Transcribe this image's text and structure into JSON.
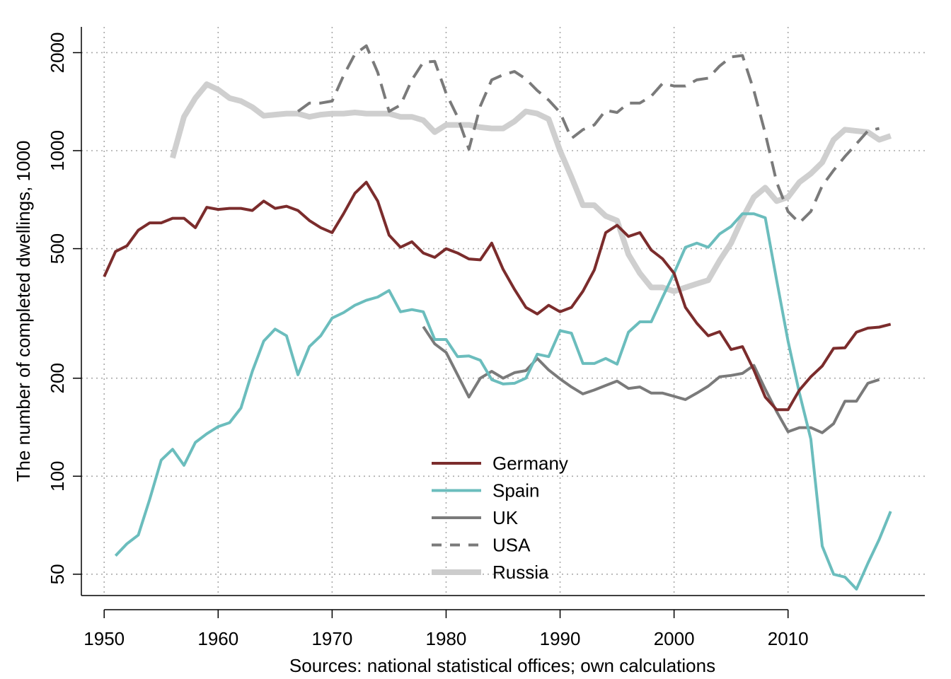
{
  "chart_data": {
    "type": "line",
    "title": "",
    "xlabel": "Sources: national statistical offices; own calculations",
    "ylabel": "The number of completed dwellings, 1000",
    "y_scale": "log",
    "xlim": [
      1948,
      2022
    ],
    "ylim": [
      43,
      2400
    ],
    "x_ticks": [
      1950,
      1960,
      1970,
      1980,
      1990,
      2000,
      2010
    ],
    "y_ticks": [
      50,
      100,
      200,
      500,
      1000,
      2000
    ],
    "grid": true,
    "legend_position": "bottom-center",
    "series": [
      {
        "name": "Germany",
        "color": "#7b2c2c",
        "dash": "solid",
        "x": [
          1950,
          1951,
          1952,
          1953,
          1954,
          1955,
          1956,
          1957,
          1958,
          1959,
          1960,
          1961,
          1962,
          1963,
          1964,
          1965,
          1966,
          1967,
          1968,
          1969,
          1970,
          1971,
          1972,
          1973,
          1974,
          1975,
          1976,
          1977,
          1978,
          1979,
          1980,
          1981,
          1982,
          1983,
          1984,
          1985,
          1986,
          1987,
          1988,
          1989,
          1990,
          1991,
          1992,
          1993,
          1994,
          1995,
          1996,
          1997,
          1998,
          1999,
          2000,
          2001,
          2002,
          2003,
          2004,
          2005,
          2006,
          2007,
          2008,
          2009,
          2010,
          2011,
          2012,
          2013,
          2014,
          2015,
          2016,
          2017,
          2018,
          2019
        ],
        "y": [
          410,
          490,
          510,
          570,
          600,
          600,
          620,
          620,
          580,
          670,
          660,
          665,
          665,
          655,
          700,
          665,
          675,
          655,
          610,
          580,
          560,
          640,
          740,
          800,
          700,
          550,
          505,
          525,
          485,
          470,
          500,
          485,
          465,
          462,
          520,
          432,
          375,
          330,
          315,
          335,
          320,
          330,
          370,
          430,
          560,
          590,
          545,
          560,
          495,
          465,
          420,
          330,
          295,
          270,
          278,
          245,
          250,
          212,
          175,
          160,
          160,
          184,
          202,
          218,
          247,
          248,
          277,
          285,
          287,
          293
        ]
      },
      {
        "name": "Spain",
        "color": "#6bbdbd",
        "dash": "solid",
        "x": [
          1951,
          1952,
          1953,
          1954,
          1955,
          1956,
          1957,
          1958,
          1959,
          1960,
          1961,
          1962,
          1963,
          1964,
          1965,
          1966,
          1967,
          1968,
          1969,
          1970,
          1971,
          1972,
          1973,
          1974,
          1975,
          1976,
          1977,
          1978,
          1979,
          1980,
          1981,
          1982,
          1983,
          1984,
          1985,
          1986,
          1987,
          1988,
          1989,
          1990,
          1991,
          1992,
          1993,
          1994,
          1995,
          1996,
          1997,
          1998,
          1999,
          2000,
          2001,
          2002,
          2003,
          2004,
          2005,
          2006,
          2007,
          2008,
          2009,
          2010,
          2011,
          2012,
          2013,
          2014,
          2015,
          2016,
          2017,
          2018,
          2019
        ],
        "y": [
          57,
          62,
          66,
          85,
          112,
          121,
          108,
          127,
          135,
          142,
          146,
          162,
          210,
          260,
          283,
          270,
          205,
          250,
          270,
          306,
          318,
          335,
          347,
          355,
          372,
          320,
          325,
          320,
          263,
          263,
          233,
          234,
          227,
          198,
          192,
          193,
          200,
          237,
          233,
          280,
          275,
          222,
          222,
          230,
          221,
          277,
          298,
          298,
          355,
          420,
          505,
          520,
          505,
          555,
          585,
          640,
          640,
          622,
          400,
          260,
          180,
          130,
          61,
          50,
          49,
          45,
          54,
          64,
          78
        ]
      },
      {
        "name": "UK",
        "color": "#7a7a7a",
        "dash": "solid",
        "x": [
          1978,
          1979,
          1980,
          1981,
          1982,
          1983,
          1984,
          1985,
          1986,
          1987,
          1988,
          1989,
          1990,
          1991,
          1992,
          1993,
          1994,
          1995,
          1996,
          1997,
          1998,
          1999,
          2000,
          2001,
          2002,
          2003,
          2004,
          2005,
          2006,
          2007,
          2008,
          2009,
          2010,
          2011,
          2012,
          2013,
          2014,
          2015,
          2016,
          2017,
          2018
        ],
        "y": [
          288,
          255,
          240,
          205,
          175,
          200,
          210,
          200,
          208,
          211,
          230,
          212,
          199,
          188,
          179,
          184,
          190,
          196,
          186,
          188,
          180,
          180,
          176,
          172,
          180,
          189,
          202,
          204,
          207,
          219,
          185,
          158,
          137,
          141,
          141,
          136,
          145,
          170,
          170,
          193,
          198
        ]
      },
      {
        "name": "USA",
        "color": "#7a7a7a",
        "dash": "dashed",
        "x": [
          1967,
          1968,
          1969,
          1970,
          1971,
          1972,
          1973,
          1974,
          1975,
          1976,
          1977,
          1978,
          1979,
          1980,
          1981,
          1982,
          1983,
          1984,
          1985,
          1986,
          1987,
          1988,
          1989,
          1990,
          1991,
          1992,
          1993,
          1994,
          1995,
          1996,
          1997,
          1998,
          1999,
          2000,
          2001,
          2002,
          2003,
          2004,
          2005,
          2006,
          2007,
          2008,
          2009,
          2010,
          2011,
          2012,
          2013,
          2014,
          2015,
          2016,
          2017,
          2018
        ],
        "y": [
          1320,
          1400,
          1400,
          1420,
          1700,
          1980,
          2100,
          1740,
          1320,
          1380,
          1650,
          1870,
          1880,
          1500,
          1270,
          1010,
          1370,
          1650,
          1710,
          1750,
          1660,
          1530,
          1430,
          1310,
          1090,
          1160,
          1200,
          1330,
          1310,
          1400,
          1400,
          1470,
          1610,
          1580,
          1580,
          1650,
          1670,
          1820,
          1940,
          1960,
          1530,
          1130,
          800,
          650,
          600,
          650,
          780,
          870,
          960,
          1050,
          1150,
          1170
        ]
      },
      {
        "name": "Russia",
        "color": "#cccccc",
        "dash": "solid",
        "x": [
          1956,
          1957,
          1958,
          1959,
          1960,
          1961,
          1962,
          1963,
          1964,
          1965,
          1966,
          1967,
          1968,
          1969,
          1970,
          1971,
          1972,
          1973,
          1974,
          1975,
          1976,
          1977,
          1978,
          1979,
          1980,
          1981,
          1982,
          1983,
          1984,
          1985,
          1986,
          1987,
          1988,
          1989,
          1990,
          1991,
          1992,
          1993,
          1994,
          1995,
          1996,
          1997,
          1998,
          1999,
          2000,
          2001,
          2002,
          2003,
          2004,
          2005,
          2006,
          2007,
          2008,
          2009,
          2010,
          2011,
          2012,
          2013,
          2014,
          2015,
          2016,
          2017,
          2018,
          2019
        ],
        "y": [
          950,
          1270,
          1450,
          1600,
          1540,
          1450,
          1420,
          1360,
          1280,
          1290,
          1300,
          1300,
          1270,
          1290,
          1300,
          1300,
          1310,
          1300,
          1300,
          1300,
          1270,
          1270,
          1240,
          1140,
          1200,
          1200,
          1200,
          1180,
          1170,
          1170,
          1230,
          1320,
          1300,
          1250,
          1000,
          830,
          680,
          680,
          630,
          610,
          480,
          420,
          380,
          380,
          370,
          380,
          390,
          400,
          460,
          520,
          620,
          720,
          770,
          700,
          720,
          800,
          850,
          920,
          1080,
          1160,
          1150,
          1140,
          1080,
          1110
        ]
      }
    ]
  }
}
